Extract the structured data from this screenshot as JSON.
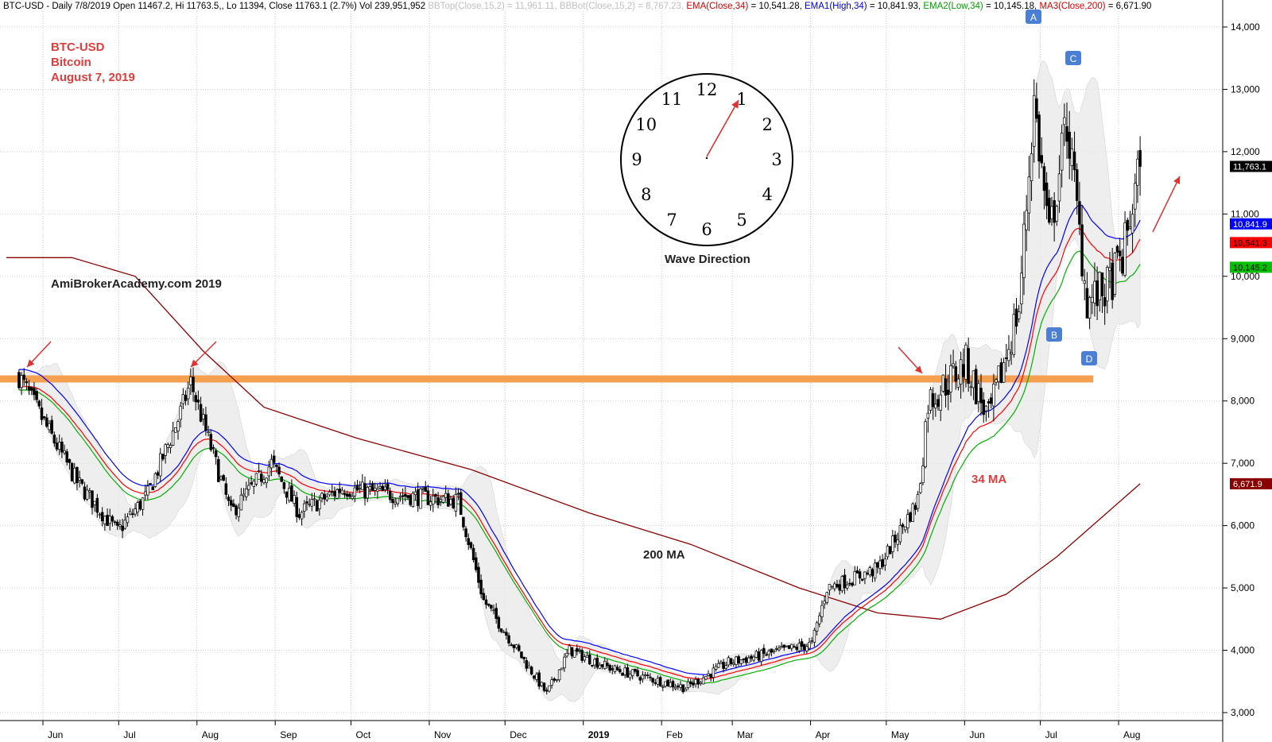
{
  "header": {
    "symbol": "BTC-USD",
    "period": "Daily 7/8/2019",
    "open": "Open 11467.2,",
    "high": "Hi 11763.5,",
    "low": "Lo 11394,",
    "close": "Close 11763.1 (2.7%)",
    "volume": "Vol 239,951,952",
    "bbtop": "BBTop(Close,15,2) = 11,961.11,",
    "bbbot": "BBBot(Close,15,2) = 8,767.23,",
    "ema34_label": "EMA(Close,34)",
    "ema34_value": "= 10,541.28,",
    "ema1_label": "EMA1(High,34)",
    "ema1_value": "= 10,841.93,",
    "ema2_label": "EMA2(Low,34)",
    "ema2_value": "= 10,145.18,",
    "ma3_label": "MA3(Close,200)",
    "ma3_value": "= 6,671.90"
  },
  "annotations": {
    "title_line1": "BTC-USD",
    "title_line2": "Bitcoin",
    "title_line3": "August 7, 2019",
    "watermark": "AmiBrokerAcademy.com   2019",
    "clock_caption": "Wave Direction",
    "ma200_label": "200 MA",
    "ma34_label": "34 MA",
    "wave_labels": [
      "A",
      "B",
      "C",
      "D"
    ],
    "clock_numbers": [
      "12",
      "1",
      "2",
      "3",
      "4",
      "5",
      "6",
      "7",
      "8",
      "9",
      "10",
      "11"
    ]
  },
  "colors": {
    "candle": "#000000",
    "ema_high": "#0000ff",
    "ema_close": "#ff0000",
    "ema_low": "#00b000",
    "ma200": "#8b0000",
    "bollinger_fill": "#e8e8e8",
    "support_line": "#f5a050",
    "arrow": "#e03030",
    "wave_badge": "#4a7fd4"
  },
  "chart_data": {
    "type": "candlestick",
    "x_axis_labels": [
      "Jun",
      "Jul",
      "Aug",
      "Sep",
      "Oct",
      "Nov",
      "Dec",
      "2019",
      "Feb",
      "Mar",
      "Apr",
      "May",
      "Jun",
      "Jul",
      "Aug"
    ],
    "y_axis_ticks": [
      "3,000",
      "4,000",
      "5,000",
      "6,000",
      "7,000",
      "8,000",
      "9,000",
      "10,000",
      "11,000",
      "12,000",
      "13,000",
      "14,000"
    ],
    "ylim": [
      3000,
      14000
    ],
    "grid": "vertical dotted",
    "support_level": 8350,
    "price_path": [
      {
        "date": "2018-05-20",
        "price": 8400
      },
      {
        "date": "2018-06-01",
        "price": 7500
      },
      {
        "date": "2018-06-12",
        "price": 6700
      },
      {
        "date": "2018-06-28",
        "price": 5900
      },
      {
        "date": "2018-07-10",
        "price": 6500
      },
      {
        "date": "2018-07-22",
        "price": 7700
      },
      {
        "date": "2018-07-27",
        "price": 8300
      },
      {
        "date": "2018-08-12",
        "price": 6200
      },
      {
        "date": "2018-08-28",
        "price": 7000
      },
      {
        "date": "2018-09-08",
        "price": 6200
      },
      {
        "date": "2018-09-25",
        "price": 6600
      },
      {
        "date": "2018-10-15",
        "price": 6500
      },
      {
        "date": "2018-11-10",
        "price": 6400
      },
      {
        "date": "2018-11-20",
        "price": 4800
      },
      {
        "date": "2018-12-15",
        "price": 3300
      },
      {
        "date": "2018-12-24",
        "price": 4000
      },
      {
        "date": "2019-01-10",
        "price": 3700
      },
      {
        "date": "2019-02-08",
        "price": 3400
      },
      {
        "date": "2019-02-25",
        "price": 3800
      },
      {
        "date": "2019-03-30",
        "price": 4100
      },
      {
        "date": "2019-04-05",
        "price": 5000
      },
      {
        "date": "2019-04-25",
        "price": 5300
      },
      {
        "date": "2019-05-11",
        "price": 6400
      },
      {
        "date": "2019-05-15",
        "price": 8000
      },
      {
        "date": "2019-05-30",
        "price": 8600
      },
      {
        "date": "2019-06-08",
        "price": 7700
      },
      {
        "date": "2019-06-20",
        "price": 9500
      },
      {
        "date": "2019-06-26",
        "price": 12800
      },
      {
        "date": "2019-07-02",
        "price": 10600
      },
      {
        "date": "2019-07-09",
        "price": 12500
      },
      {
        "date": "2019-07-17",
        "price": 9600
      },
      {
        "date": "2019-07-25",
        "price": 9800
      },
      {
        "date": "2019-07-31",
        "price": 10300
      },
      {
        "date": "2019-08-07",
        "price": 11763
      }
    ],
    "series": [
      {
        "name": "EMA(Close,34)",
        "color": "#ff0000",
        "last": 10541.28,
        "last_label": "10,541.3"
      },
      {
        "name": "EMA1(High,34)",
        "color": "#0000ff",
        "last": 10841.93,
        "last_label": "10,841.9"
      },
      {
        "name": "EMA2(Low,34)",
        "color": "#00b000",
        "last": 10145.18,
        "last_label": "10,145.2"
      },
      {
        "name": "MA3(Close,200)",
        "color": "#8b0000",
        "last": 6671.9,
        "last_label": "6,671.9",
        "points": [
          {
            "date": "2018-05-15",
            "price": 10300
          },
          {
            "date": "2018-06-10",
            "price": 10300
          },
          {
            "date": "2018-07-05",
            "price": 10000
          },
          {
            "date": "2018-08-01",
            "price": 8800
          },
          {
            "date": "2018-08-25",
            "price": 7900
          },
          {
            "date": "2018-10-01",
            "price": 7400
          },
          {
            "date": "2018-11-15",
            "price": 6900
          },
          {
            "date": "2019-01-01",
            "price": 6200
          },
          {
            "date": "2019-02-10",
            "price": 5700
          },
          {
            "date": "2019-03-25",
            "price": 5000
          },
          {
            "date": "2019-04-25",
            "price": 4600
          },
          {
            "date": "2019-05-20",
            "price": 4500
          },
          {
            "date": "2019-06-15",
            "price": 4900
          },
          {
            "date": "2019-07-05",
            "price": 5500
          },
          {
            "date": "2019-08-07",
            "price": 6672
          }
        ]
      }
    ],
    "last_close": {
      "value": 11763.1,
      "label": "11,763.1"
    }
  }
}
